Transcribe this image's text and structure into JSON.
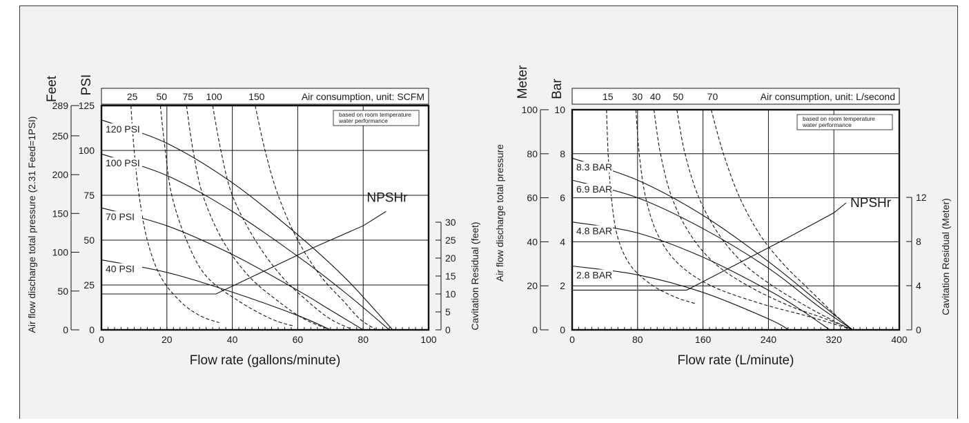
{
  "chart_data": [
    {
      "type": "line",
      "units": "imperial",
      "xlabel": "Flow rate (gallons/minute)",
      "xlim": [
        0,
        100
      ],
      "x_ticks": [
        "0",
        "20",
        "40",
        "60",
        "80",
        "100"
      ],
      "ylabel_psi": "PSI",
      "ylim_psi": [
        0,
        125
      ],
      "psi_ticks": [
        "0",
        "25",
        "50",
        "75",
        "100",
        "125"
      ],
      "ylabel_feet_title": "Feet",
      "ylabel_feet": "Air flow discharge total pressure (2.31 Feed=1PSI)",
      "feet_ticks": [
        {
          "label": "0",
          "value": 0
        },
        {
          "label": "50",
          "value": 50
        },
        {
          "label": "100",
          "value": 100
        },
        {
          "label": "150",
          "value": 150
        },
        {
          "label": "200",
          "value": 200
        },
        {
          "label": "250",
          "value": 250
        },
        {
          "label": "289",
          "value": 289
        }
      ],
      "ylabel_right": "Cavitation Residual (feet)",
      "right_range": [
        0,
        30
      ],
      "right_ticks": [
        "0",
        "5",
        "10",
        "15",
        "20",
        "25",
        "30"
      ],
      "air_axis_label": "Air consumption, unit: SCFM",
      "note": [
        "based on room temperature",
        "water performance"
      ],
      "pressure_series": [
        {
          "name": "120 PSI",
          "x": [
            0,
            20,
            40,
            60,
            75,
            89
          ],
          "y": [
            117,
            104,
            82,
            53,
            28,
            0
          ]
        },
        {
          "name": "100 PSI",
          "x": [
            0,
            20,
            40,
            60,
            75,
            88
          ],
          "y": [
            98,
            86,
            66,
            41,
            20,
            0
          ]
        },
        {
          "name": "70 PSI",
          "x": [
            0,
            20,
            40,
            60,
            70,
            80
          ],
          "y": [
            68,
            58,
            42,
            22,
            11,
            0
          ]
        },
        {
          "name": "40 PSI",
          "x": [
            0,
            20,
            40,
            60,
            70
          ],
          "y": [
            39,
            32,
            21,
            8,
            0
          ]
        }
      ],
      "air_series": [
        {
          "name": "25",
          "x": [
            9,
            10,
            11.5,
            14,
            18,
            24,
            30,
            36
          ],
          "y": [
            125,
            100,
            75,
            50,
            30,
            16,
            8,
            4
          ]
        },
        {
          "name": "50",
          "x": [
            18,
            19.5,
            21.5,
            26,
            32,
            42,
            52,
            59
          ],
          "y": [
            125,
            100,
            75,
            50,
            30,
            16,
            6,
            2
          ]
        },
        {
          "name": "75",
          "x": [
            26,
            28,
            31,
            37,
            45,
            54,
            62,
            70
          ],
          "y": [
            125,
            100,
            75,
            50,
            30,
            16,
            6,
            0
          ]
        },
        {
          "name": "100",
          "x": [
            34,
            36.5,
            40,
            47,
            55,
            63,
            70,
            77
          ],
          "y": [
            125,
            100,
            75,
            50,
            30,
            16,
            6,
            0
          ]
        },
        {
          "name": "150",
          "x": [
            47,
            50,
            54,
            60,
            67,
            74,
            79,
            84
          ],
          "y": [
            125,
            100,
            75,
            50,
            30,
            16,
            6,
            0
          ]
        }
      ],
      "npshr": {
        "name": "NPSHr",
        "x": [
          0,
          35,
          50,
          65,
          80,
          87
        ],
        "y": [
          10,
          10,
          16.5,
          23,
          29,
          33
        ]
      }
    },
    {
      "type": "line",
      "units": "metric",
      "xlabel": "Flow rate (L/minute)",
      "xlim": [
        0,
        400
      ],
      "x_ticks": [
        "0",
        "80",
        "160",
        "240",
        "320",
        "400"
      ],
      "ylabel_bar": "Bar",
      "ylim_bar": [
        0,
        10
      ],
      "bar_ticks": [
        "0",
        "2",
        "4",
        "6",
        "8",
        "10"
      ],
      "ylabel_meter_title": "Meter",
      "ylabel_meter": "Air flow discharge total pressure",
      "meter_ticks": [
        "0",
        "20",
        "40",
        "60",
        "80",
        "100"
      ],
      "ylabel_right": "Cavitation Residual (Meter)",
      "right_range": [
        0,
        12
      ],
      "right_ticks": [
        "0",
        "4",
        "8",
        "12"
      ],
      "air_axis_label": "Air consumption, unit: L/second",
      "note": [
        "based on room temperature",
        "water performance"
      ],
      "pressure_series": [
        {
          "name": "8.3 BAR",
          "x": [
            0,
            80,
            160,
            240,
            300,
            343
          ],
          "y": [
            7.8,
            6.8,
            5.2,
            3.1,
            1.3,
            0
          ]
        },
        {
          "name": "6.9 BAR",
          "x": [
            0,
            80,
            160,
            240,
            300,
            343
          ],
          "y": [
            6.8,
            6.0,
            4.6,
            2.8,
            1.1,
            0
          ]
        },
        {
          "name": "4.8 BAR",
          "x": [
            0,
            80,
            160,
            240,
            280,
            315
          ],
          "y": [
            4.9,
            4.4,
            3.3,
            1.8,
            0.9,
            0
          ]
        },
        {
          "name": "2.8 BAR",
          "x": [
            0,
            80,
            160,
            240,
            265
          ],
          "y": [
            2.9,
            2.5,
            1.7,
            0.5,
            0
          ]
        }
      ],
      "air_series": [
        {
          "name": "15",
          "x": [
            42,
            44,
            48,
            55,
            70,
            95,
            125,
            150
          ],
          "y": [
            10,
            8,
            6,
            4.3,
            3,
            2.1,
            1.5,
            1.2
          ]
        },
        {
          "name": "30",
          "x": [
            78,
            82,
            90,
            105,
            130,
            170,
            230,
            290,
            343
          ],
          "y": [
            10,
            8,
            6,
            4.3,
            3,
            2,
            1.2,
            0.6,
            0
          ]
        },
        {
          "name": "40",
          "x": [
            100,
            108,
            122,
            145,
            175,
            215,
            265,
            310,
            343
          ],
          "y": [
            10,
            8,
            6,
            4.3,
            3,
            2,
            1.1,
            0.5,
            0
          ]
        },
        {
          "name": "50",
          "x": [
            128,
            138,
            155,
            180,
            210,
            245,
            285,
            320,
            343
          ],
          "y": [
            10,
            8,
            6,
            4.3,
            3,
            2,
            1.1,
            0.4,
            0
          ]
        },
        {
          "name": "70",
          "x": [
            170,
            185,
            205,
            230,
            258,
            285,
            310,
            330,
            343
          ],
          "y": [
            10,
            8,
            6,
            4.3,
            3,
            2,
            1.1,
            0.4,
            0
          ]
        }
      ],
      "npshr": {
        "name": "NPSHr",
        "x": [
          0,
          140,
          200,
          260,
          320,
          335
        ],
        "y": [
          3.6,
          3.6,
          5.9,
          8.2,
          10.6,
          11.5
        ]
      }
    }
  ]
}
